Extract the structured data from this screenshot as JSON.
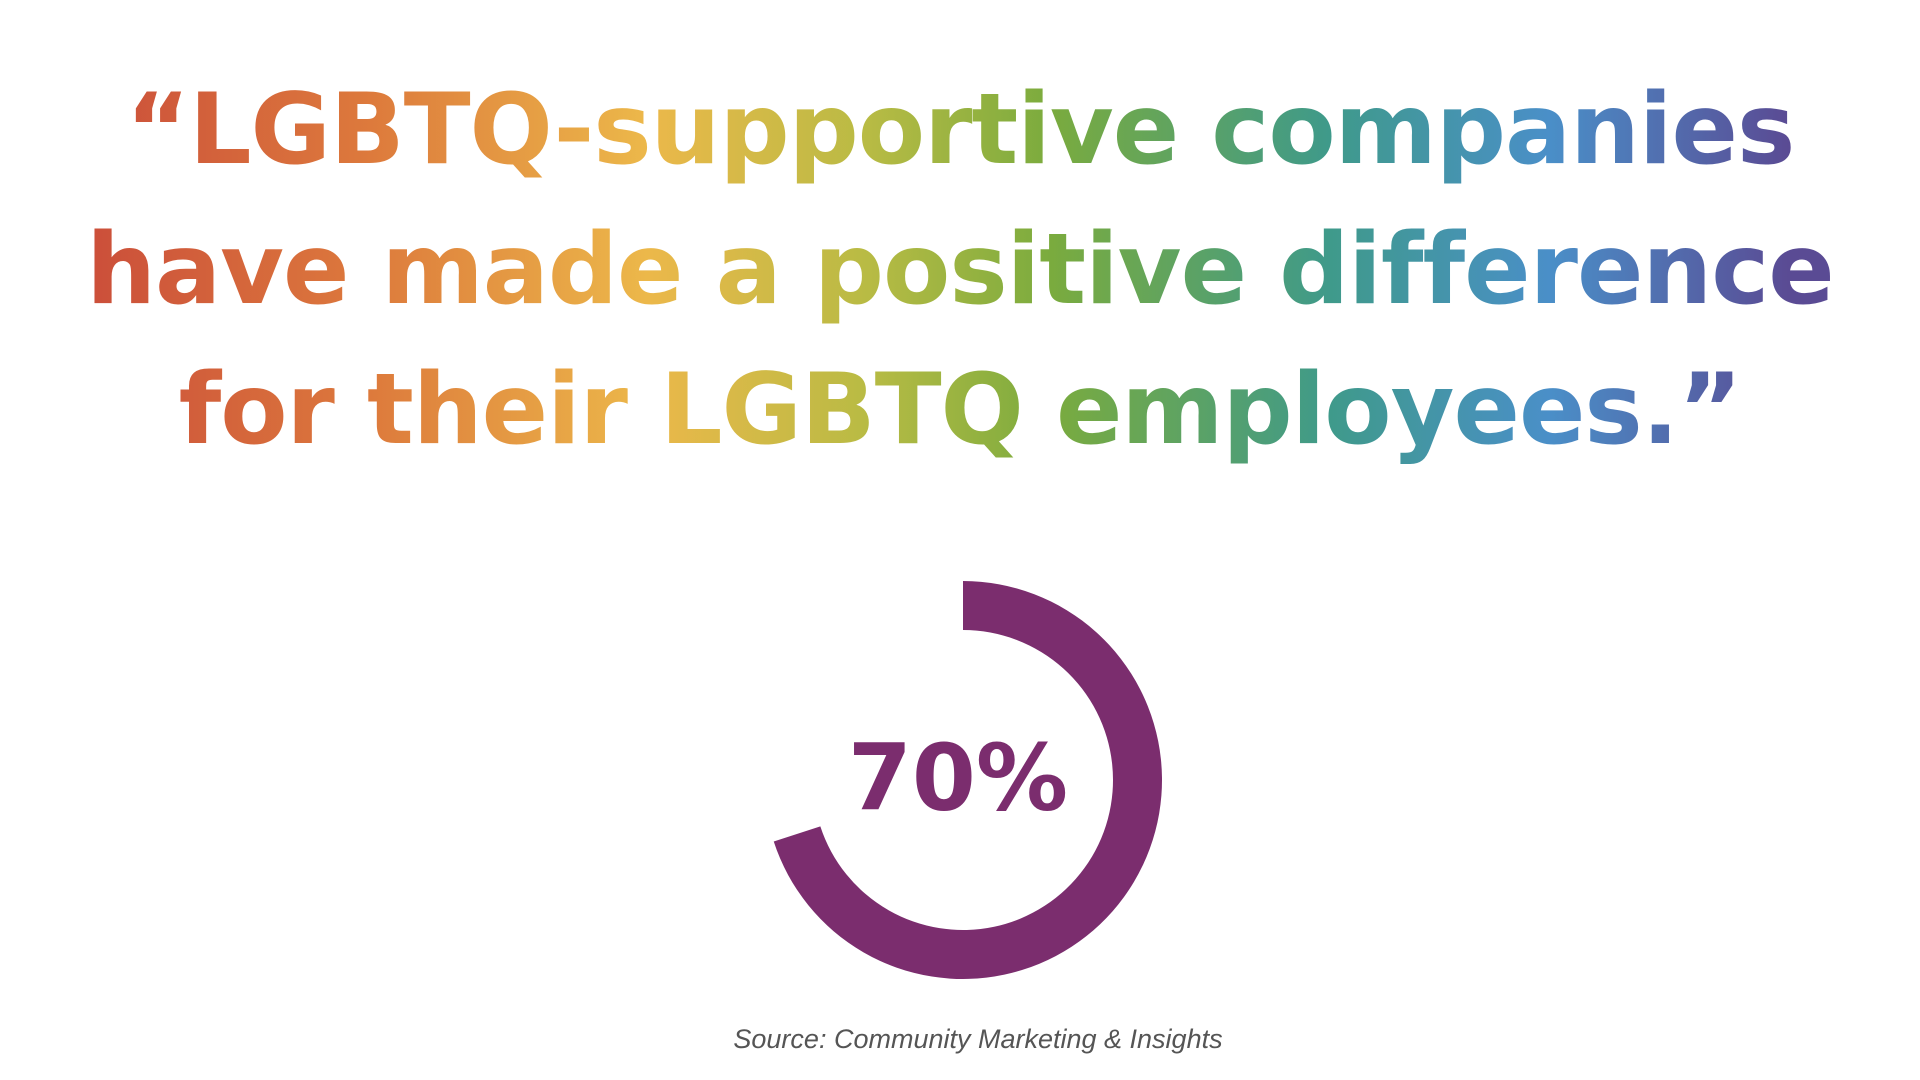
{
  "chart_data": {
    "type": "gauge",
    "title": "“LGBTQ-supportive companies have made a positive difference for their LGBTQ employees.”",
    "values": [
      70
    ],
    "value_labels": [
      "70%"
    ],
    "color": "#7b2d6e",
    "source": "Source: Community Marketing & Insights"
  }
}
